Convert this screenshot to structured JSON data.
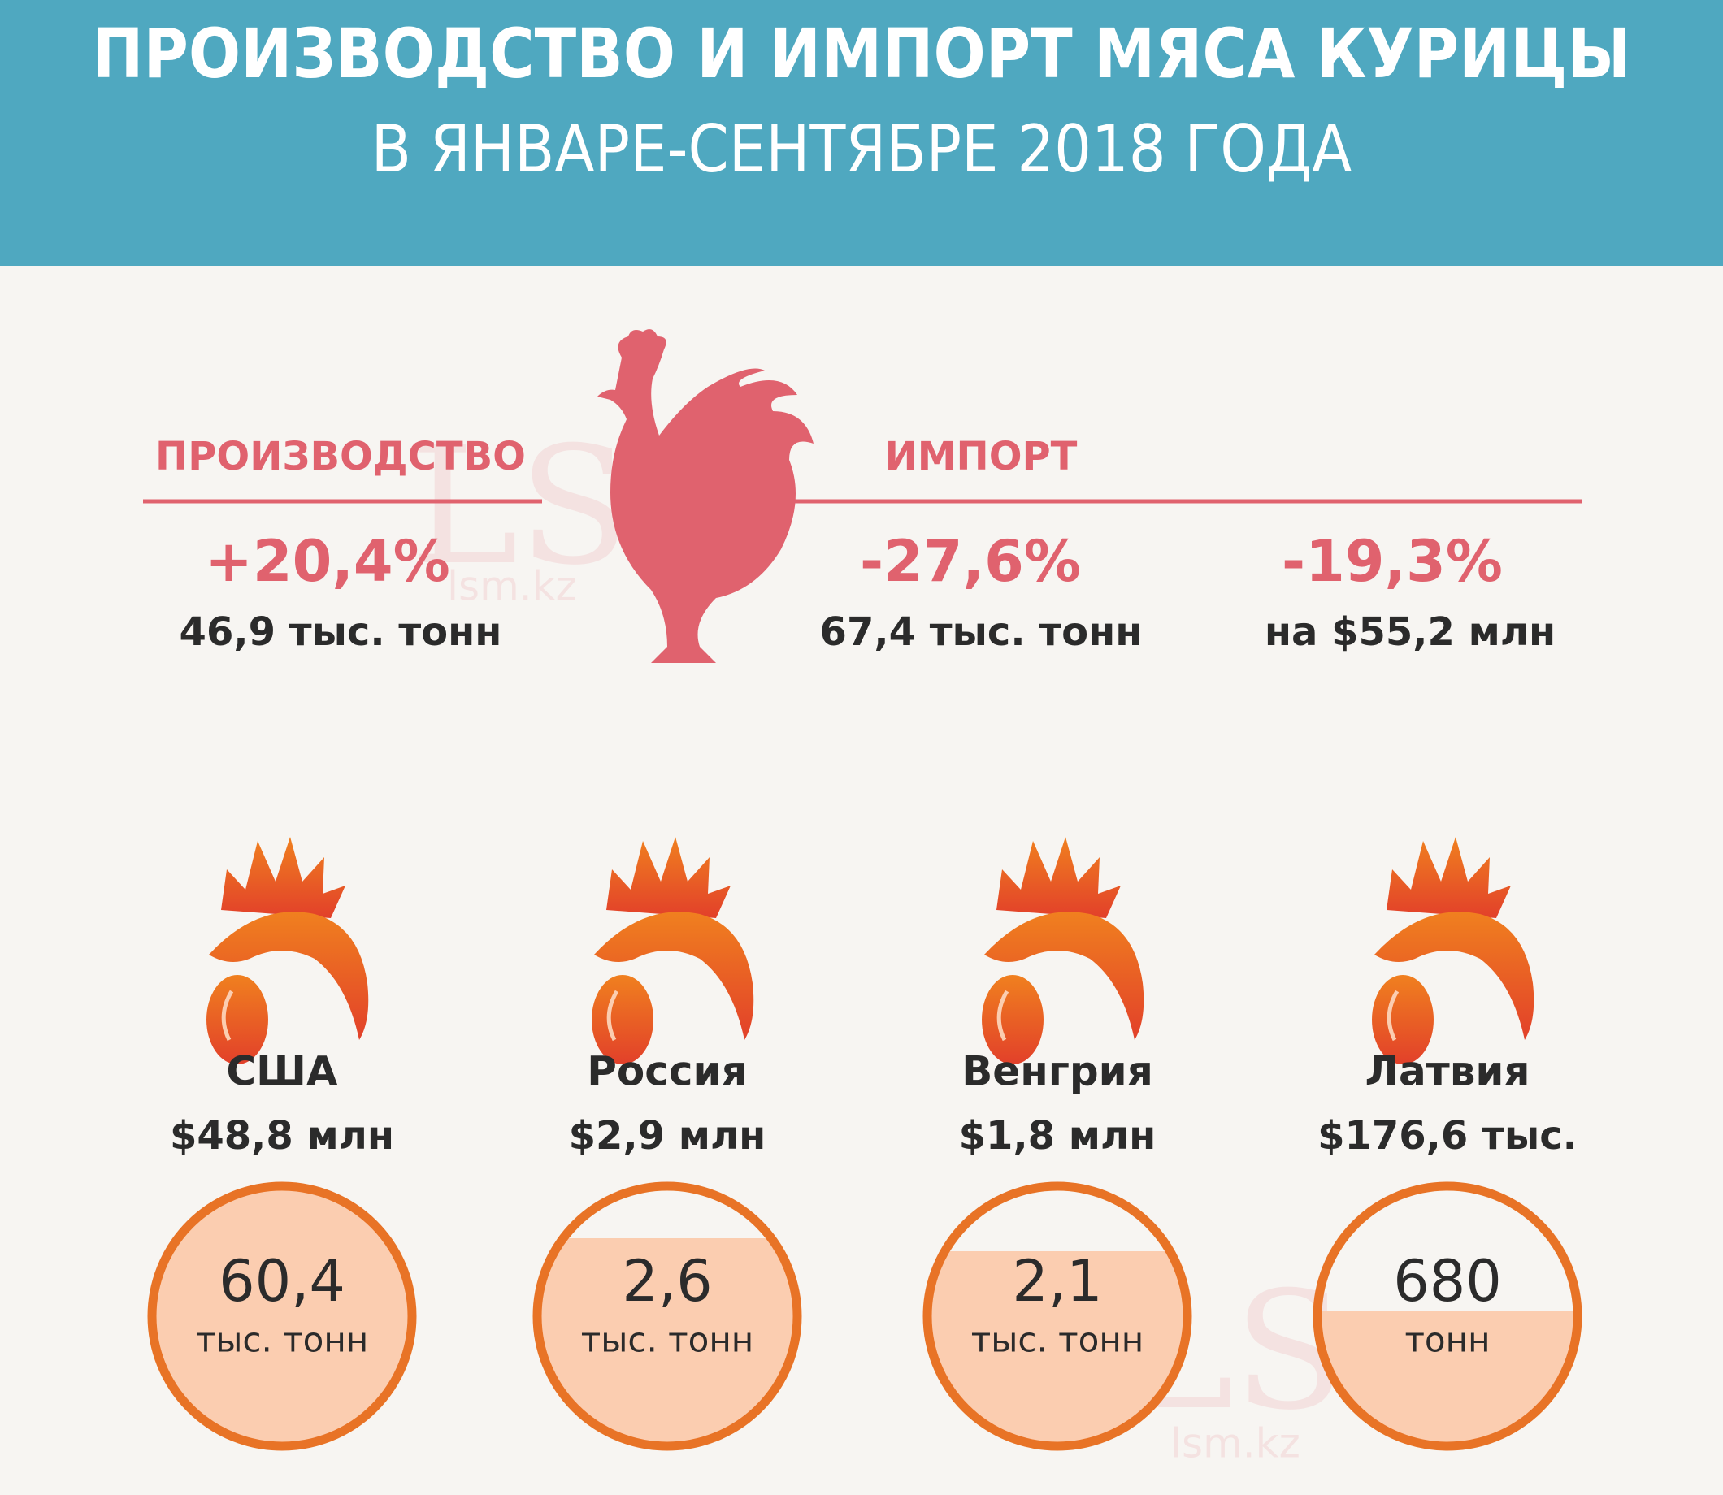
{
  "header": {
    "title": "ПРОИЗВОДСТВО И ИМПОРТ МЯСА КУРИЦЫ",
    "subtitle": "В ЯНВАРЕ-СЕНТЯБРЕ 2018 ГОДА"
  },
  "production": {
    "label": "ПРОИЗВОДСТВО",
    "change": "+20,4%",
    "volume": "46,9 тыс. тонн"
  },
  "import": {
    "label": "ИМПОРТ",
    "volume_change": "-27,6%",
    "volume": "67,4 тыс. тонн",
    "value_change": "-19,3%",
    "value": "на $55,2 млн"
  },
  "countries": [
    {
      "name": "США",
      "value": "$48,8 млн",
      "amount": "60,4",
      "unit": "тыс. тонн"
    },
    {
      "name": "Россия",
      "value": "$2,9 млн",
      "amount": "2,6",
      "unit": "тыс. тонн"
    },
    {
      "name": "Венгрия",
      "value": "$1,8 млн",
      "amount": "2,1",
      "unit": "тыс. тонн"
    },
    {
      "name": "Латвия",
      "value": "$176,6 тыс.",
      "amount": "680",
      "unit": "тонн"
    }
  ],
  "watermark": [
    "LS",
    "lsm.kz"
  ]
}
